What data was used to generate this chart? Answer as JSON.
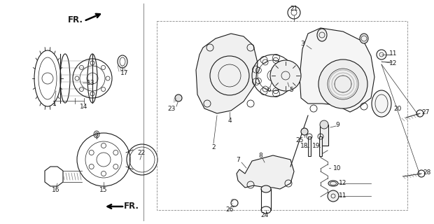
{
  "bg_color": "#ffffff",
  "fig_width": 6.2,
  "fig_height": 3.2,
  "dpi": 100,
  "line_color": "#1a1a1a",
  "label_fontsize": 6.5,
  "fr_fontsize": 8.5
}
